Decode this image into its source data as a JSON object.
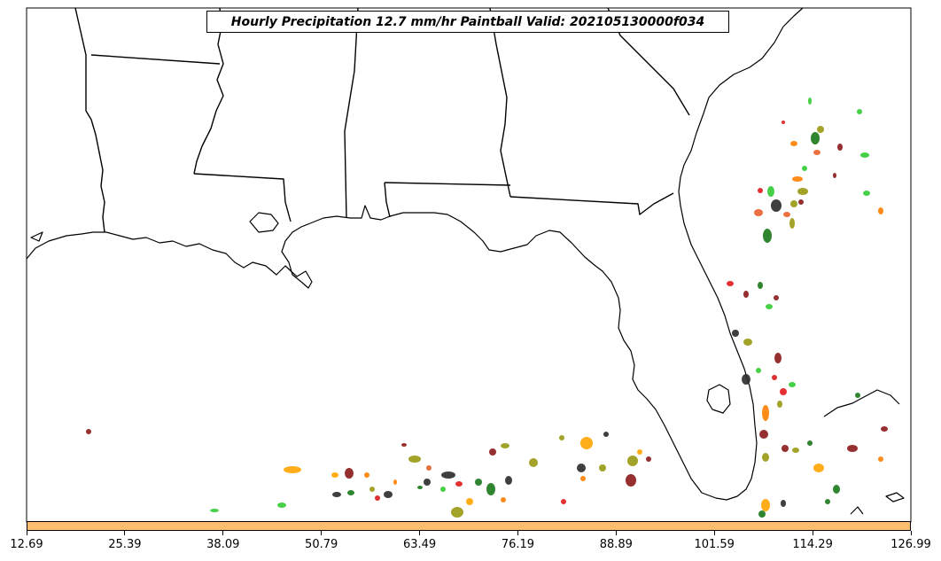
{
  "title": "Hourly Precipitation 12.7 mm/hr Paintball Valid: 202105130000f034",
  "colorbar": {
    "color": "#fdbf6f",
    "ticks": [
      "12.69",
      "25.39",
      "38.09",
      "50.79",
      "63.49",
      "76.19",
      "88.89",
      "101.59",
      "114.29",
      "126.99"
    ]
  },
  "member_colors": [
    "#e31a1c",
    "#ff7f00",
    "#ffa500",
    "#33cc33",
    "#1a7a1a",
    "#8b1a1a",
    "#2b2b2b",
    "#9a9a14",
    "#e8612c"
  ]
}
